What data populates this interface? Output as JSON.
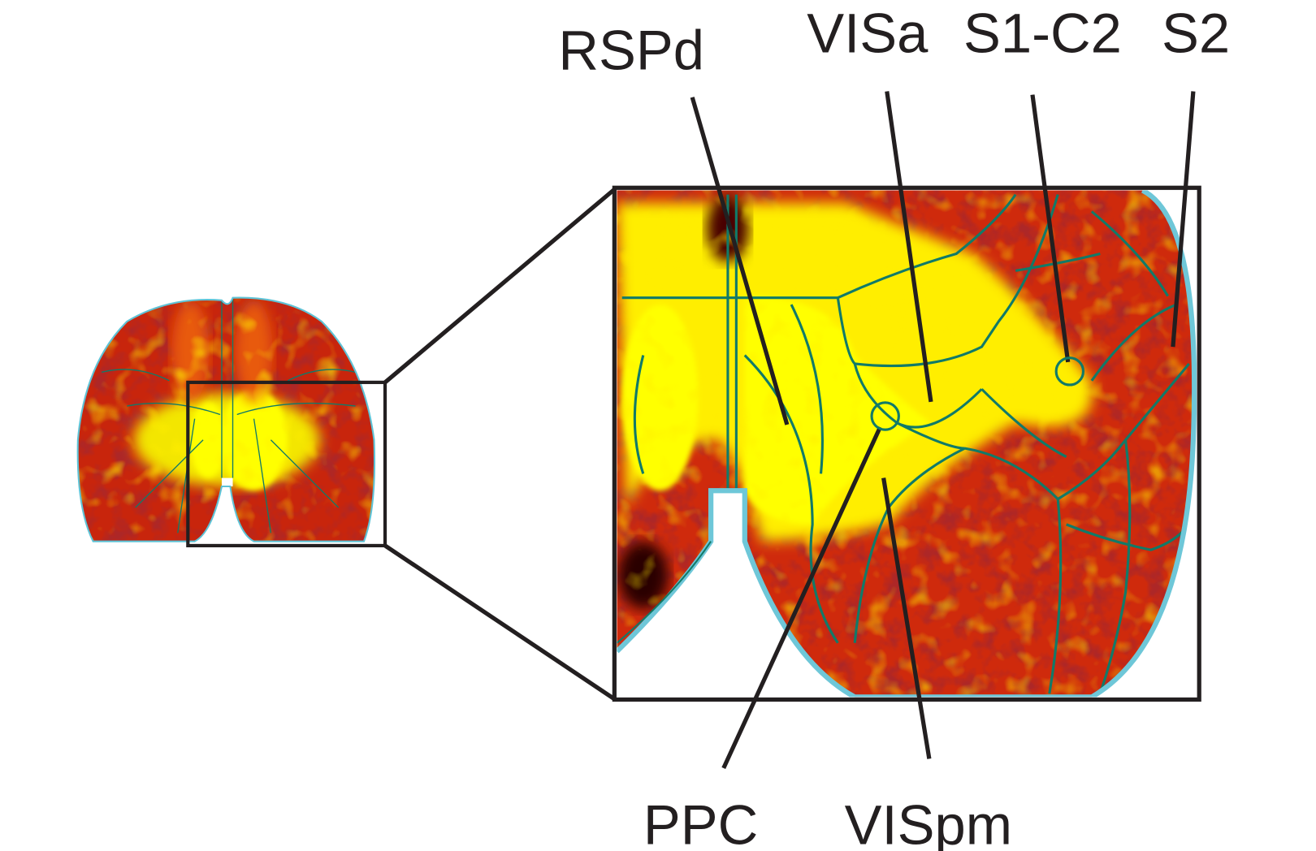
{
  "labels": {
    "top": [
      "RSPd",
      "VISa",
      "S1-C2",
      "S2"
    ],
    "bottom": [
      "PPC",
      "VISpm"
    ]
  }
}
